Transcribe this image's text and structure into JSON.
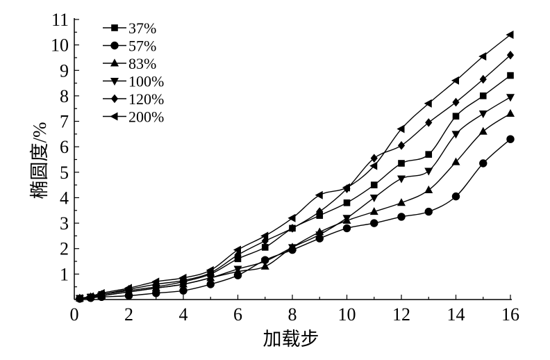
{
  "chart_data": {
    "type": "line",
    "xlabel": "加载步",
    "ylabel": "椭圆度/%",
    "xlim": [
      0,
      16
    ],
    "ylim": [
      0,
      11
    ],
    "xticks": [
      0,
      2,
      4,
      6,
      8,
      10,
      12,
      14,
      16
    ],
    "yticks": [
      1,
      2,
      3,
      4,
      5,
      6,
      7,
      8,
      9,
      10,
      11
    ],
    "grid": false,
    "legend_position": "top-left",
    "series": [
      {
        "name": "37%",
        "marker": "square",
        "x": [
          0.2,
          0.6,
          1,
          2,
          3,
          4,
          5,
          6,
          7,
          8,
          9,
          10,
          11,
          12,
          13,
          14,
          15,
          16
        ],
        "y": [
          0.05,
          0.1,
          0.2,
          0.35,
          0.5,
          0.7,
          1.0,
          1.6,
          2.05,
          2.8,
          3.3,
          3.8,
          4.5,
          5.35,
          5.7,
          7.2,
          8.0,
          8.8
        ]
      },
      {
        "name": "57%",
        "marker": "circle",
        "x": [
          0.2,
          0.6,
          1,
          2,
          3,
          4,
          5,
          6,
          7,
          8,
          9,
          10,
          11,
          12,
          13,
          14,
          15,
          16
        ],
        "y": [
          0.03,
          0.06,
          0.1,
          0.15,
          0.25,
          0.35,
          0.6,
          0.95,
          1.55,
          1.95,
          2.4,
          2.8,
          3.0,
          3.25,
          3.45,
          4.05,
          5.35,
          6.3
        ]
      },
      {
        "name": "83%",
        "marker": "triangle-up",
        "x": [
          0.2,
          0.6,
          1,
          2,
          3,
          4,
          5,
          6,
          7,
          8,
          9,
          10,
          11,
          12,
          13,
          14,
          15,
          16
        ],
        "y": [
          0.05,
          0.1,
          0.15,
          0.3,
          0.45,
          0.6,
          0.85,
          1.1,
          1.3,
          2.05,
          2.65,
          3.1,
          3.45,
          3.8,
          4.3,
          5.4,
          6.6,
          7.3
        ]
      },
      {
        "name": "100%",
        "marker": "triangle-down",
        "x": [
          0.2,
          0.6,
          1,
          2,
          3,
          4,
          5,
          6,
          7,
          8,
          9,
          10,
          11,
          12,
          13,
          14,
          15,
          16
        ],
        "y": [
          0.05,
          0.1,
          0.15,
          0.3,
          0.45,
          0.6,
          0.85,
          1.2,
          1.5,
          2.05,
          2.55,
          3.2,
          4.0,
          4.75,
          5.05,
          6.5,
          7.3,
          7.95
        ]
      },
      {
        "name": "120%",
        "marker": "diamond",
        "x": [
          0.2,
          0.6,
          1,
          2,
          3,
          4,
          5,
          6,
          7,
          8,
          9,
          10,
          11,
          12,
          13,
          14,
          15,
          16
        ],
        "y": [
          0.05,
          0.1,
          0.2,
          0.4,
          0.6,
          0.75,
          1.05,
          1.75,
          2.3,
          2.8,
          3.45,
          4.35,
          5.55,
          6.05,
          6.95,
          7.75,
          8.65,
          9.6
        ]
      },
      {
        "name": "200%",
        "marker": "triangle-left",
        "x": [
          0.2,
          0.6,
          1,
          2,
          3,
          4,
          5,
          6,
          7,
          8,
          9,
          10,
          11,
          12,
          13,
          14,
          15,
          16
        ],
        "y": [
          0.05,
          0.12,
          0.25,
          0.45,
          0.7,
          0.85,
          1.15,
          1.95,
          2.5,
          3.2,
          4.1,
          4.4,
          5.25,
          6.7,
          7.7,
          8.6,
          9.55,
          10.4
        ]
      }
    ]
  }
}
